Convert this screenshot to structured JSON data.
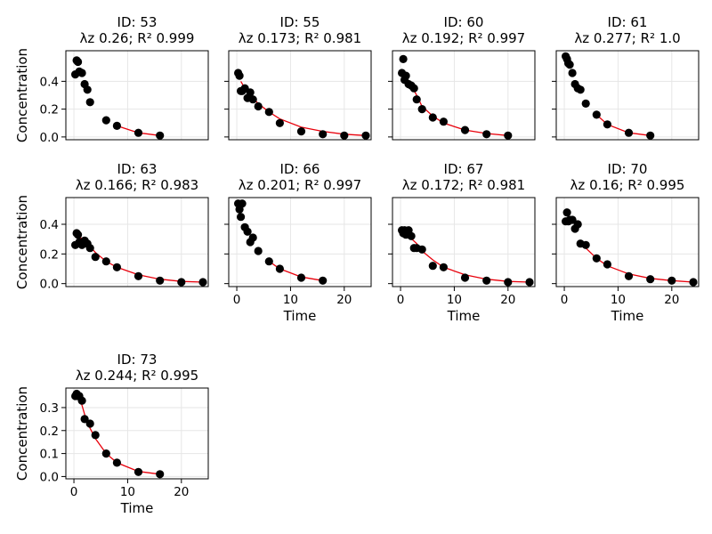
{
  "chart_data": {
    "type": "scatter",
    "layout": "facet-grid",
    "columns": 4,
    "xlabel": "Time",
    "ylabel": "Concentration",
    "xlim": [
      -1.5,
      25
    ],
    "grid": true,
    "colors": {
      "points": "#000000",
      "fit_line": "#e8000b",
      "grid": "#e6e6e6",
      "frame": "#000000"
    },
    "panels": [
      {
        "title_line1": "ID: 53",
        "title_line2": "λz 0.26; R² 0.999",
        "ylim": [
          -0.02,
          0.62
        ],
        "yticks": [
          0.0,
          0.2,
          0.4
        ],
        "ytick_labels": [
          "0.0",
          "0.2",
          "0.4"
        ],
        "show_ylabel": true,
        "show_xlabel": false,
        "xticks": [
          0,
          10,
          20
        ],
        "xtick_labels": [],
        "points": [
          [
            0.25,
            0.45
          ],
          [
            0.5,
            0.55
          ],
          [
            0.75,
            0.54
          ],
          [
            1,
            0.47
          ],
          [
            1.5,
            0.46
          ],
          [
            2,
            0.38
          ],
          [
            2.5,
            0.34
          ],
          [
            3,
            0.25
          ],
          [
            6,
            0.12
          ],
          [
            8,
            0.08
          ],
          [
            12,
            0.03
          ],
          [
            16,
            0.01
          ]
        ],
        "fit": [
          [
            8,
            0.08
          ],
          [
            12,
            0.03
          ],
          [
            16,
            0.01
          ]
        ]
      },
      {
        "title_line1": "ID: 55",
        "title_line2": "λz 0.173; R² 0.981",
        "ylim": [
          -0.02,
          0.62
        ],
        "yticks": [
          0.0,
          0.2,
          0.4
        ],
        "ytick_labels": [],
        "show_ylabel": false,
        "show_xlabel": false,
        "xticks": [
          0,
          10,
          20
        ],
        "xtick_labels": [],
        "points": [
          [
            0.25,
            0.46
          ],
          [
            0.5,
            0.44
          ],
          [
            0.75,
            0.33
          ],
          [
            1,
            0.33
          ],
          [
            1.5,
            0.35
          ],
          [
            2,
            0.28
          ],
          [
            2.5,
            0.32
          ],
          [
            3,
            0.27
          ],
          [
            4,
            0.22
          ],
          [
            6,
            0.18
          ],
          [
            8,
            0.1
          ],
          [
            12,
            0.04
          ],
          [
            16,
            0.02
          ],
          [
            20,
            0.01
          ],
          [
            24,
            0.01
          ]
        ],
        "fit": [
          [
            0.75,
            0.4
          ],
          [
            1.5,
            0.35
          ],
          [
            3,
            0.28
          ],
          [
            4,
            0.24
          ],
          [
            6,
            0.18
          ],
          [
            8,
            0.13
          ],
          [
            12,
            0.07
          ],
          [
            16,
            0.04
          ],
          [
            20,
            0.02
          ],
          [
            24,
            0.01
          ]
        ]
      },
      {
        "title_line1": "ID: 60",
        "title_line2": "λz 0.192; R² 0.997",
        "ylim": [
          -0.02,
          0.62
        ],
        "yticks": [
          0.0,
          0.2,
          0.4
        ],
        "ytick_labels": [],
        "show_ylabel": false,
        "show_xlabel": false,
        "xticks": [
          0,
          10,
          20
        ],
        "xtick_labels": [],
        "points": [
          [
            0.25,
            0.46
          ],
          [
            0.5,
            0.56
          ],
          [
            0.75,
            0.41
          ],
          [
            1,
            0.44
          ],
          [
            1.5,
            0.38
          ],
          [
            2,
            0.37
          ],
          [
            2.5,
            0.35
          ],
          [
            3,
            0.27
          ],
          [
            4,
            0.2
          ],
          [
            6,
            0.14
          ],
          [
            8,
            0.11
          ],
          [
            12,
            0.05
          ],
          [
            16,
            0.02
          ],
          [
            20,
            0.01
          ]
        ],
        "fit": [
          [
            1,
            0.41
          ],
          [
            2,
            0.37
          ],
          [
            3,
            0.3
          ],
          [
            4,
            0.22
          ],
          [
            6,
            0.15
          ],
          [
            8,
            0.1
          ],
          [
            12,
            0.05
          ],
          [
            16,
            0.025
          ],
          [
            20,
            0.01
          ]
        ]
      },
      {
        "title_line1": "ID: 61",
        "title_line2": "λz 0.277; R² 1.0",
        "ylim": [
          -0.02,
          0.62
        ],
        "yticks": [
          0.0,
          0.2,
          0.4
        ],
        "ytick_labels": [],
        "show_ylabel": false,
        "show_xlabel": false,
        "xticks": [
          0,
          10,
          20
        ],
        "xtick_labels": [],
        "points": [
          [
            0.25,
            0.58
          ],
          [
            0.5,
            0.56
          ],
          [
            0.75,
            0.53
          ],
          [
            1,
            0.52
          ],
          [
            1.5,
            0.46
          ],
          [
            2,
            0.38
          ],
          [
            2.5,
            0.35
          ],
          [
            3,
            0.34
          ],
          [
            4,
            0.24
          ],
          [
            6,
            0.16
          ],
          [
            8,
            0.09
          ],
          [
            12,
            0.03
          ],
          [
            16,
            0.01
          ]
        ],
        "fit": [
          [
            6,
            0.16
          ],
          [
            8,
            0.09
          ],
          [
            12,
            0.03
          ],
          [
            16,
            0.01
          ]
        ]
      },
      {
        "title_line1": "ID: 63",
        "title_line2": "λz 0.166; R² 0.983",
        "ylim": [
          -0.02,
          0.58
        ],
        "yticks": [
          0.0,
          0.2,
          0.4
        ],
        "ytick_labels": [
          "0.0",
          "0.2",
          "0.4"
        ],
        "show_ylabel": true,
        "show_xlabel": false,
        "xticks": [
          0,
          10,
          20
        ],
        "xtick_labels": [],
        "points": [
          [
            0.25,
            0.26
          ],
          [
            0.5,
            0.34
          ],
          [
            0.75,
            0.33
          ],
          [
            1,
            0.28
          ],
          [
            1.5,
            0.26
          ],
          [
            2,
            0.29
          ],
          [
            2.5,
            0.27
          ],
          [
            3,
            0.24
          ],
          [
            4,
            0.18
          ],
          [
            6,
            0.15
          ],
          [
            8,
            0.11
          ],
          [
            12,
            0.05
          ],
          [
            16,
            0.02
          ],
          [
            20,
            0.01
          ],
          [
            24,
            0.01
          ]
        ],
        "fit": [
          [
            0.75,
            0.33
          ],
          [
            1.5,
            0.3
          ],
          [
            3,
            0.25
          ],
          [
            4,
            0.21
          ],
          [
            6,
            0.15
          ],
          [
            8,
            0.11
          ],
          [
            12,
            0.06
          ],
          [
            16,
            0.03
          ],
          [
            20,
            0.015
          ],
          [
            24,
            0.01
          ]
        ]
      },
      {
        "title_line1": "ID: 66",
        "title_line2": "λz 0.201; R² 0.997",
        "ylim": [
          -0.02,
          0.58
        ],
        "yticks": [
          0.0,
          0.2,
          0.4
        ],
        "ytick_labels": [],
        "show_ylabel": false,
        "show_xlabel": true,
        "xticks": [
          0,
          10,
          20
        ],
        "xtick_labels": [
          "0",
          "10",
          "20"
        ],
        "points": [
          [
            0.25,
            0.54
          ],
          [
            0.5,
            0.5
          ],
          [
            0.75,
            0.45
          ],
          [
            1,
            0.54
          ],
          [
            1.5,
            0.38
          ],
          [
            2,
            0.35
          ],
          [
            2.5,
            0.28
          ],
          [
            3,
            0.31
          ],
          [
            4,
            0.22
          ],
          [
            6,
            0.15
          ],
          [
            8,
            0.1
          ],
          [
            12,
            0.04
          ],
          [
            16,
            0.02
          ]
        ],
        "fit": [
          [
            6,
            0.15
          ],
          [
            8,
            0.1
          ],
          [
            12,
            0.045
          ],
          [
            16,
            0.02
          ]
        ]
      },
      {
        "title_line1": "ID: 67",
        "title_line2": "λz 0.172; R² 0.981",
        "ylim": [
          -0.02,
          0.58
        ],
        "yticks": [
          0.0,
          0.2,
          0.4
        ],
        "ytick_labels": [],
        "show_ylabel": false,
        "show_xlabel": true,
        "xticks": [
          0,
          10,
          20
        ],
        "xtick_labels": [
          "0",
          "10",
          "20"
        ],
        "points": [
          [
            0.25,
            0.36
          ],
          [
            0.5,
            0.34
          ],
          [
            0.75,
            0.36
          ],
          [
            1,
            0.33
          ],
          [
            1.5,
            0.36
          ],
          [
            2,
            0.32
          ],
          [
            2.5,
            0.24
          ],
          [
            3,
            0.24
          ],
          [
            4,
            0.23
          ],
          [
            6,
            0.12
          ],
          [
            8,
            0.11
          ],
          [
            12,
            0.04
          ],
          [
            16,
            0.02
          ],
          [
            20,
            0.01
          ],
          [
            24,
            0.01
          ]
        ],
        "fit": [
          [
            0.75,
            0.34
          ],
          [
            1.5,
            0.32
          ],
          [
            3,
            0.27
          ],
          [
            4,
            0.22
          ],
          [
            6,
            0.16
          ],
          [
            8,
            0.11
          ],
          [
            12,
            0.06
          ],
          [
            16,
            0.03
          ],
          [
            20,
            0.015
          ],
          [
            24,
            0.01
          ]
        ]
      },
      {
        "title_line1": "ID: 70",
        "title_line2": "λz 0.16; R² 0.995",
        "ylim": [
          -0.02,
          0.58
        ],
        "yticks": [
          0.0,
          0.2,
          0.4
        ],
        "ytick_labels": [],
        "show_ylabel": false,
        "show_xlabel": true,
        "xticks": [
          0,
          10,
          20
        ],
        "xtick_labels": [
          "0",
          "10",
          "20"
        ],
        "points": [
          [
            0.25,
            0.42
          ],
          [
            0.5,
            0.48
          ],
          [
            0.75,
            0.42
          ],
          [
            1,
            0.43
          ],
          [
            1.5,
            0.43
          ],
          [
            2,
            0.37
          ],
          [
            2.5,
            0.4
          ],
          [
            3,
            0.27
          ],
          [
            4,
            0.26
          ],
          [
            6,
            0.17
          ],
          [
            8,
            0.13
          ],
          [
            12,
            0.05
          ],
          [
            16,
            0.03
          ],
          [
            20,
            0.02
          ],
          [
            24,
            0.01
          ]
        ],
        "fit": [
          [
            3,
            0.28
          ],
          [
            4,
            0.24
          ],
          [
            6,
            0.17
          ],
          [
            8,
            0.12
          ],
          [
            12,
            0.065
          ],
          [
            16,
            0.035
          ],
          [
            20,
            0.02
          ],
          [
            24,
            0.01
          ]
        ]
      },
      {
        "title_line1": "ID: 73",
        "title_line2": "λz 0.244; R² 0.995",
        "ylim": [
          -0.01,
          0.385
        ],
        "yticks": [
          0.0,
          0.1,
          0.2,
          0.3
        ],
        "ytick_labels": [
          "0.0",
          "0.1",
          "0.2",
          "0.3"
        ],
        "show_ylabel": true,
        "show_xlabel": true,
        "xticks": [
          0,
          10,
          20
        ],
        "xtick_labels": [
          "0",
          "10",
          "20"
        ],
        "points": [
          [
            0.25,
            0.35
          ],
          [
            0.5,
            0.36
          ],
          [
            0.75,
            0.35
          ],
          [
            1,
            0.35
          ],
          [
            1.5,
            0.33
          ],
          [
            2,
            0.25
          ],
          [
            3,
            0.23
          ],
          [
            4,
            0.18
          ],
          [
            6,
            0.1
          ],
          [
            8,
            0.06
          ],
          [
            12,
            0.02
          ],
          [
            16,
            0.01
          ]
        ],
        "fit": [
          [
            1,
            0.35
          ],
          [
            2,
            0.27
          ],
          [
            3,
            0.21
          ],
          [
            4,
            0.165
          ],
          [
            6,
            0.1
          ],
          [
            8,
            0.06
          ],
          [
            12,
            0.022
          ],
          [
            16,
            0.01
          ]
        ]
      }
    ]
  }
}
